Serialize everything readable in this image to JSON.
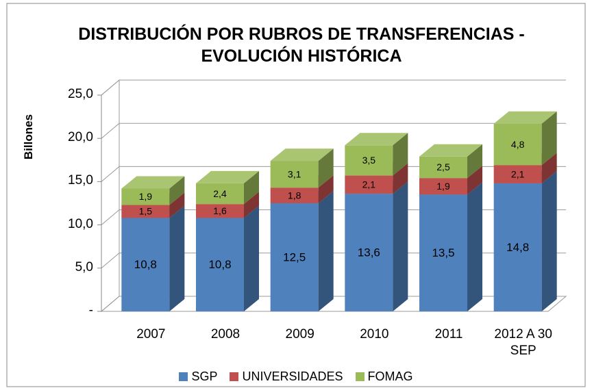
{
  "chart_data": {
    "type": "bar3d_stacked",
    "title": "DISTRIBUCIÓN POR RUBROS DE TRANSFERENCIAS - EVOLUCIÓN HISTÓRICA",
    "y_label": "Billones",
    "categories": [
      "2007",
      "2008",
      "2009",
      "2010",
      "2011",
      "2012 A 30 SEP"
    ],
    "series": [
      {
        "name": "SGP",
        "color": "#4f81bd",
        "values": [
          10.8,
          10.8,
          12.5,
          13.6,
          13.5,
          14.8
        ],
        "value_labels": [
          "10,8",
          "10,8",
          "12,5",
          "13,6",
          "13,5",
          "14,8"
        ]
      },
      {
        "name": "UNIVERSIDADES",
        "color": "#c0504d",
        "values": [
          1.5,
          1.6,
          1.8,
          2.1,
          1.9,
          2.1
        ],
        "value_labels": [
          "1,5",
          "1,6",
          "1,8",
          "2,1",
          "1,9",
          "2,1"
        ]
      },
      {
        "name": "FOMAG",
        "color": "#9bbb59",
        "values": [
          1.9,
          2.4,
          3.1,
          3.5,
          2.5,
          4.8
        ],
        "value_labels": [
          "1,9",
          "2,4",
          "3,1",
          "3,5",
          "2,5",
          "4,8"
        ]
      }
    ],
    "ylim": [
      0,
      25
    ],
    "yticks": [
      {
        "value": 0,
        "label": "-"
      },
      {
        "value": 5,
        "label": "5,0"
      },
      {
        "value": 10,
        "label": "10,0"
      },
      {
        "value": 15,
        "label": "15,0"
      },
      {
        "value": 20,
        "label": "20,0"
      },
      {
        "value": 25,
        "label": "25,0"
      }
    ],
    "grid": true,
    "legend": "bottom"
  }
}
